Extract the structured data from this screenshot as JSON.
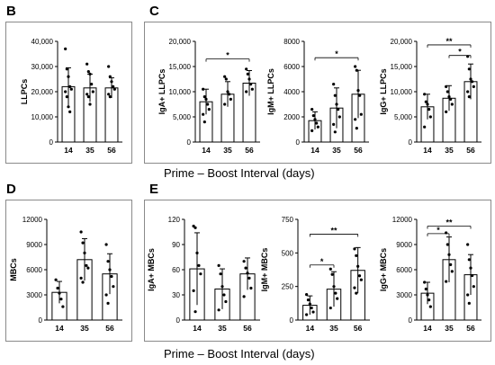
{
  "panels": {
    "B": "B",
    "C": "C",
    "D": "D",
    "E": "E"
  },
  "x_titles": {
    "top": "Prime – Boost Interval (days)",
    "bottom": "Prime – Boost Interval (days)"
  },
  "chart_data": [
    {
      "id": "B-LLPCs",
      "type": "bar",
      "panel": "B",
      "ylabel": "LLPCs",
      "categories": [
        "14",
        "35",
        "56"
      ],
      "ylim": [
        0,
        40000
      ],
      "yticks": [
        "0",
        "10,000",
        "20,000",
        "30,000",
        "40,000"
      ],
      "means": [
        22000,
        21500,
        21500
      ],
      "sd": [
        7500,
        5500,
        4000
      ],
      "points": [
        [
          37000,
          29000,
          26000,
          22000,
          21000,
          20000,
          18000,
          14000,
          12000
        ],
        [
          31000,
          28000,
          27000,
          23000,
          20000,
          19000,
          18000,
          15000
        ],
        [
          30000,
          26000,
          24000,
          22000,
          21000,
          19000,
          18000
        ]
      ],
      "significance": []
    },
    {
      "id": "C-IgA",
      "type": "bar",
      "panel": "C",
      "ylabel": "IgA+ LLPCs",
      "categories": [
        "14",
        "35",
        "56"
      ],
      "ylim": [
        0,
        20000
      ],
      "yticks": [
        "0",
        "5,000",
        "10,000",
        "15,000",
        "20,000"
      ],
      "means": [
        8000,
        9500,
        11700
      ],
      "sd": [
        2500,
        2500,
        2500
      ],
      "points": [
        [
          10500,
          9000,
          8500,
          7500,
          6500,
          5500,
          4000
        ],
        [
          13000,
          12500,
          10000,
          9500,
          8500,
          7500
        ],
        [
          14500,
          13500,
          12500,
          11500,
          10500,
          10000
        ]
      ],
      "significance": [
        {
          "from": 0,
          "to": 2,
          "label": "*",
          "y": 16500
        }
      ]
    },
    {
      "id": "C-IgM",
      "type": "bar",
      "panel": "C",
      "ylabel": "IgM+ LLPCs",
      "categories": [
        "14",
        "35",
        "56"
      ],
      "ylim": [
        0,
        8000
      ],
      "yticks": [
        "0",
        "2000",
        "4000",
        "6000",
        "8000"
      ],
      "means": [
        1700,
        2700,
        3800
      ],
      "sd": [
        700,
        1600,
        1900
      ],
      "points": [
        [
          2600,
          2100,
          1800,
          1500,
          1200,
          900
        ],
        [
          4600,
          3700,
          3000,
          2600,
          2000,
          1400,
          800
        ],
        [
          6000,
          5700,
          4100,
          3700,
          2200,
          1800,
          1100
        ]
      ],
      "significance": [
        {
          "from": 0,
          "to": 2,
          "label": "*",
          "y": 6700
        }
      ]
    },
    {
      "id": "C-IgG",
      "type": "bar",
      "panel": "C",
      "ylabel": "IgG+ LLPCs",
      "categories": [
        "14",
        "35",
        "56"
      ],
      "ylim": [
        0,
        20000
      ],
      "yticks": [
        "0",
        "5,000",
        "10,000",
        "15,000",
        "20,000"
      ],
      "means": [
        7000,
        8700,
        12000
      ],
      "sd": [
        2500,
        2500,
        3500
      ],
      "points": [
        [
          9500,
          8000,
          7500,
          6500,
          5000,
          3000
        ],
        [
          11000,
          10000,
          9000,
          8500,
          7500,
          6000
        ],
        [
          17000,
          14500,
          12500,
          12000,
          11000,
          10000,
          9000
        ]
      ],
      "significance": [
        {
          "from": 0,
          "to": 2,
          "label": "**",
          "y": 19300
        },
        {
          "from": 1,
          "to": 2,
          "label": "*",
          "y": 17200
        }
      ]
    },
    {
      "id": "D-MBCs",
      "type": "bar",
      "panel": "D",
      "ylabel": "MBCs",
      "categories": [
        "14",
        "35",
        "56"
      ],
      "ylim": [
        0,
        12000
      ],
      "yticks": [
        "0",
        "3000",
        "6000",
        "9000",
        "12000"
      ],
      "means": [
        3300,
        7200,
        5500
      ],
      "sd": [
        1300,
        2500,
        2400
      ],
      "points": [
        [
          4800,
          3800,
          3200,
          2500,
          1600
        ],
        [
          10500,
          9200,
          8000,
          6500,
          6200,
          5000,
          4500
        ],
        [
          9000,
          7000,
          6000,
          5200,
          4000,
          3000,
          2000
        ]
      ],
      "significance": []
    },
    {
      "id": "E-IgA",
      "type": "bar",
      "panel": "E",
      "ylabel": "IgA+ MBCs",
      "categories": [
        "14",
        "35",
        "56"
      ],
      "ylim": [
        0,
        120
      ],
      "yticks": [
        "0",
        "30",
        "60",
        "90",
        "120"
      ],
      "means": [
        61,
        37,
        55
      ],
      "sd": [
        43,
        24,
        19
      ],
      "points": [
        [
          112,
          110,
          80,
          65,
          55,
          35,
          10
        ],
        [
          65,
          55,
          40,
          30,
          22,
          12
        ],
        [
          70,
          62,
          56,
          50,
          38,
          28
        ]
      ],
      "significance": []
    },
    {
      "id": "E-IgM",
      "type": "bar",
      "panel": "E",
      "ylabel": "IgM+ MBCs",
      "categories": [
        "14",
        "35",
        "56"
      ],
      "ylim": [
        0,
        750
      ],
      "yticks": [
        "0",
        "250",
        "500",
        "750"
      ],
      "means": [
        110,
        230,
        370
      ],
      "sd": [
        70,
        130,
        170
      ],
      "points": [
        [
          190,
          150,
          120,
          90,
          60,
          40
        ],
        [
          380,
          340,
          250,
          200,
          160,
          90
        ],
        [
          530,
          480,
          400,
          330,
          300,
          240,
          200
        ]
      ],
      "significance": [
        {
          "from": 0,
          "to": 1,
          "label": "*",
          "y": 410
        },
        {
          "from": 0,
          "to": 2,
          "label": "**",
          "y": 640
        }
      ]
    },
    {
      "id": "E-IgG",
      "type": "bar",
      "panel": "E",
      "ylabel": "IgG+ MBCs",
      "categories": [
        "14",
        "35",
        "56"
      ],
      "ylim": [
        0,
        12000
      ],
      "yticks": [
        "0",
        "3000",
        "6000",
        "9000",
        "12000"
      ],
      "means": [
        3200,
        7200,
        5400
      ],
      "sd": [
        1300,
        2700,
        2400
      ],
      "points": [
        [
          4500,
          3700,
          3000,
          2400,
          1600
        ],
        [
          10400,
          9000,
          7800,
          6600,
          5800,
          4600
        ],
        [
          9000,
          7200,
          6200,
          5300,
          4000,
          3000,
          2000
        ]
      ],
      "significance": [
        {
          "from": 0,
          "to": 1,
          "label": "*",
          "y": 10300
        },
        {
          "from": 0,
          "to": 2,
          "label": "**",
          "y": 11200
        }
      ]
    }
  ]
}
